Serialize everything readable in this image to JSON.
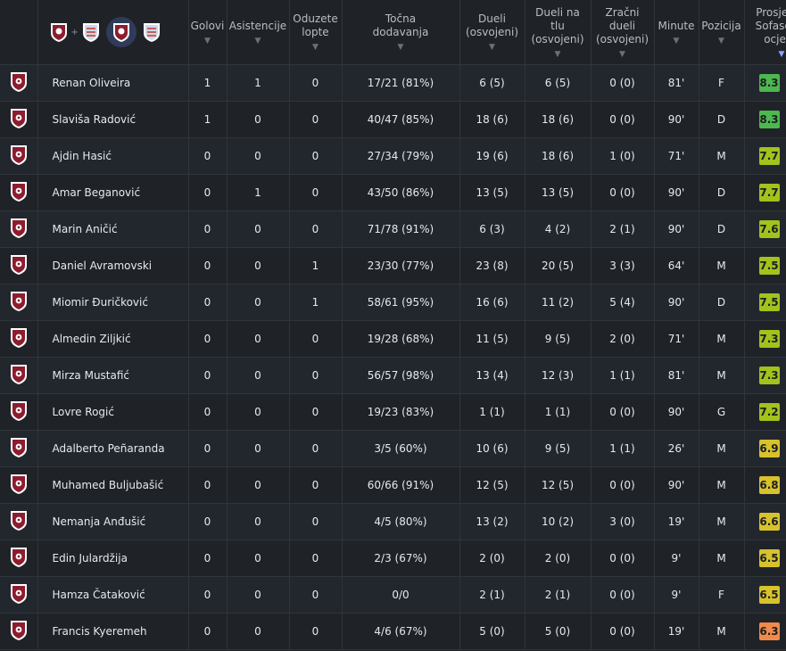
{
  "header": {
    "columns": [
      {
        "key": "goals",
        "lines": [
          "Golovi"
        ]
      },
      {
        "key": "assists",
        "lines": [
          "Asistencije"
        ]
      },
      {
        "key": "tackles",
        "lines": [
          "Oduzete",
          "lopte"
        ]
      },
      {
        "key": "passes",
        "lines": [
          "Točna",
          "dodavanja"
        ]
      },
      {
        "key": "duels",
        "lines": [
          "Dueli",
          "(osvojeni)"
        ]
      },
      {
        "key": "ground_duels",
        "lines": [
          "Dueli na tlu",
          "(osvojeni)"
        ]
      },
      {
        "key": "aerial_duels",
        "lines": [
          "Zračni",
          "dueli",
          "(osvojeni)"
        ]
      },
      {
        "key": "minutes",
        "lines": [
          "Minute"
        ]
      },
      {
        "key": "position",
        "lines": [
          "Pozicija"
        ]
      },
      {
        "key": "rating",
        "lines": [
          "Prosječna",
          "Sofascore",
          "ocjena"
        ]
      }
    ],
    "team_filter": {
      "combined_icon": "team-crests-combined-icon",
      "plus": "+",
      "home_icon": "sarajevo-crest-icon",
      "away_icon": "away-team-crest-icon"
    }
  },
  "colors": {
    "rating_high": "#4cb84f",
    "rating_mid_high": "#a2c21c",
    "rating_mid": "#d8c22c",
    "rating_low": "#f08a4b",
    "crest_maroon": "#8c1d2e"
  },
  "players": [
    {
      "name": "Renan Oliveira",
      "goals": "1",
      "assists": "1",
      "tackles": "0",
      "passes": "17/21 (81%)",
      "duels": "6 (5)",
      "ground_duels": "6 (5)",
      "aerial_duels": "0 (0)",
      "minutes": "81'",
      "position": "F",
      "rating": "8.3",
      "rating_color": "#4cb84f"
    },
    {
      "name": "Slaviša Radović",
      "goals": "1",
      "assists": "0",
      "tackles": "0",
      "passes": "40/47 (85%)",
      "duels": "18 (6)",
      "ground_duels": "18 (6)",
      "aerial_duels": "0 (0)",
      "minutes": "90'",
      "position": "D",
      "rating": "8.3",
      "rating_color": "#4cb84f"
    },
    {
      "name": "Ajdin Hasić",
      "goals": "0",
      "assists": "0",
      "tackles": "0",
      "passes": "27/34 (79%)",
      "duels": "19 (6)",
      "ground_duels": "18 (6)",
      "aerial_duels": "1 (0)",
      "minutes": "71'",
      "position": "M",
      "rating": "7.7",
      "rating_color": "#a2c21c"
    },
    {
      "name": "Amar Beganović",
      "goals": "0",
      "assists": "1",
      "tackles": "0",
      "passes": "43/50 (86%)",
      "duels": "13 (5)",
      "ground_duels": "13 (5)",
      "aerial_duels": "0 (0)",
      "minutes": "90'",
      "position": "D",
      "rating": "7.7",
      "rating_color": "#a2c21c"
    },
    {
      "name": "Marin Aničić",
      "goals": "0",
      "assists": "0",
      "tackles": "0",
      "passes": "71/78 (91%)",
      "duels": "6 (3)",
      "ground_duels": "4 (2)",
      "aerial_duels": "2 (1)",
      "minutes": "90'",
      "position": "D",
      "rating": "7.6",
      "rating_color": "#a2c21c"
    },
    {
      "name": "Daniel Avramovski",
      "goals": "0",
      "assists": "0",
      "tackles": "1",
      "passes": "23/30 (77%)",
      "duels": "23 (8)",
      "ground_duels": "20 (5)",
      "aerial_duels": "3 (3)",
      "minutes": "64'",
      "position": "M",
      "rating": "7.5",
      "rating_color": "#a2c21c"
    },
    {
      "name": "Miomir Đuričković",
      "goals": "0",
      "assists": "0",
      "tackles": "1",
      "passes": "58/61 (95%)",
      "duels": "16 (6)",
      "ground_duels": "11 (2)",
      "aerial_duels": "5 (4)",
      "minutes": "90'",
      "position": "D",
      "rating": "7.5",
      "rating_color": "#a2c21c"
    },
    {
      "name": "Almedin Ziljkić",
      "goals": "0",
      "assists": "0",
      "tackles": "0",
      "passes": "19/28 (68%)",
      "duels": "11 (5)",
      "ground_duels": "9 (5)",
      "aerial_duels": "2 (0)",
      "minutes": "71'",
      "position": "M",
      "rating": "7.3",
      "rating_color": "#a2c21c"
    },
    {
      "name": "Mirza Mustafić",
      "goals": "0",
      "assists": "0",
      "tackles": "0",
      "passes": "56/57 (98%)",
      "duels": "13 (4)",
      "ground_duels": "12 (3)",
      "aerial_duels": "1 (1)",
      "minutes": "81'",
      "position": "M",
      "rating": "7.3",
      "rating_color": "#a2c21c"
    },
    {
      "name": "Lovre Rogić",
      "goals": "0",
      "assists": "0",
      "tackles": "0",
      "passes": "19/23 (83%)",
      "duels": "1 (1)",
      "ground_duels": "1 (1)",
      "aerial_duels": "0 (0)",
      "minutes": "90'",
      "position": "G",
      "rating": "7.2",
      "rating_color": "#a2c21c"
    },
    {
      "name": "Adalberto Peñaranda",
      "goals": "0",
      "assists": "0",
      "tackles": "0",
      "passes": "3/5 (60%)",
      "duels": "10 (6)",
      "ground_duels": "9 (5)",
      "aerial_duels": "1 (1)",
      "minutes": "26'",
      "position": "M",
      "rating": "6.9",
      "rating_color": "#d8c22c"
    },
    {
      "name": "Muhamed Buljubašić",
      "goals": "0",
      "assists": "0",
      "tackles": "0",
      "passes": "60/66 (91%)",
      "duels": "12 (5)",
      "ground_duels": "12 (5)",
      "aerial_duels": "0 (0)",
      "minutes": "90'",
      "position": "M",
      "rating": "6.8",
      "rating_color": "#d8c22c"
    },
    {
      "name": "Nemanja Anđušić",
      "goals": "0",
      "assists": "0",
      "tackles": "0",
      "passes": "4/5 (80%)",
      "duels": "13 (2)",
      "ground_duels": "10 (2)",
      "aerial_duels": "3 (0)",
      "minutes": "19'",
      "position": "M",
      "rating": "6.6",
      "rating_color": "#d8c22c"
    },
    {
      "name": "Edin Julardžija",
      "goals": "0",
      "assists": "0",
      "tackles": "0",
      "passes": "2/3 (67%)",
      "duels": "2 (0)",
      "ground_duels": "2 (0)",
      "aerial_duels": "0 (0)",
      "minutes": "9'",
      "position": "M",
      "rating": "6.5",
      "rating_color": "#d8c22c"
    },
    {
      "name": "Hamza Čataković",
      "goals": "0",
      "assists": "0",
      "tackles": "0",
      "passes": "0/0",
      "duels": "2 (1)",
      "ground_duels": "2 (1)",
      "aerial_duels": "0 (0)",
      "minutes": "9'",
      "position": "F",
      "rating": "6.5",
      "rating_color": "#d8c22c"
    },
    {
      "name": "Francis Kyeremeh",
      "goals": "0",
      "assists": "0",
      "tackles": "0",
      "passes": "4/6 (67%)",
      "duels": "5 (0)",
      "ground_duels": "5 (0)",
      "aerial_duels": "0 (0)",
      "minutes": "19'",
      "position": "M",
      "rating": "6.3",
      "rating_color": "#f08a4b"
    }
  ]
}
